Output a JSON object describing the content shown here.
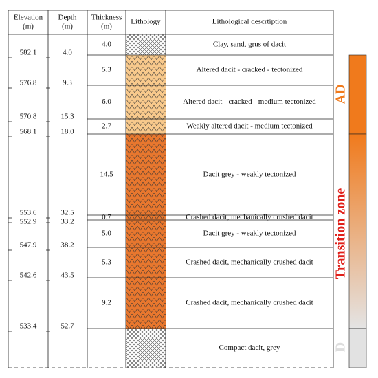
{
  "header": {
    "columns": [
      {
        "name": "Elevation",
        "unit": "(m)"
      },
      {
        "name": "Depth",
        "unit": "(m)"
      },
      {
        "name": "Thickness",
        "unit": "(m)"
      },
      {
        "name": "Lithology"
      },
      {
        "name": "Lithological descrtiption"
      }
    ]
  },
  "layers": [
    {
      "thickness": "4.0",
      "description": "Clay, sand, grus of dacit"
    },
    {
      "thickness": "5.3",
      "description": "Altered dacit - cracked - tectonized"
    },
    {
      "thickness": "6.0",
      "description": "Altered dacit - cracked - medium tectonized"
    },
    {
      "thickness": "2.7",
      "description": "Weakly altered dacit - medium tectonized"
    },
    {
      "thickness": "14.5",
      "description": "Dacit grey - weakly tectonized"
    },
    {
      "thickness": "0.7",
      "description": "Crashed dacit, mechanically crushed dacit"
    },
    {
      "thickness": "5.0",
      "description": "Dacit grey - weakly tectonized"
    },
    {
      "thickness": "5.3",
      "description": "Crashed dacit, mechanically crushed dacit"
    },
    {
      "thickness": "9.2",
      "description": "Crashed dacit, mechanically crushed dacit"
    },
    {
      "description": "Compact dacit, grey"
    }
  ],
  "boundaries": [
    {
      "elevation": "582.1",
      "depth": "4.0"
    },
    {
      "elevation": "576.8",
      "depth": "9.3"
    },
    {
      "elevation": "570.8",
      "depth": "15.3"
    },
    {
      "elevation": "568.1",
      "depth": "18.0"
    },
    {
      "elevation": "553.6",
      "depth": "32.5"
    },
    {
      "elevation": "552.9",
      "depth": "33.2"
    },
    {
      "elevation": "547.9",
      "depth": "38.2"
    },
    {
      "elevation": "542.6",
      "depth": "43.5"
    },
    {
      "elevation": "533.4",
      "depth": "52.7"
    }
  ],
  "zones": [
    {
      "label": "AD"
    },
    {
      "label": "Transition zone"
    },
    {
      "label": "D"
    }
  ]
}
